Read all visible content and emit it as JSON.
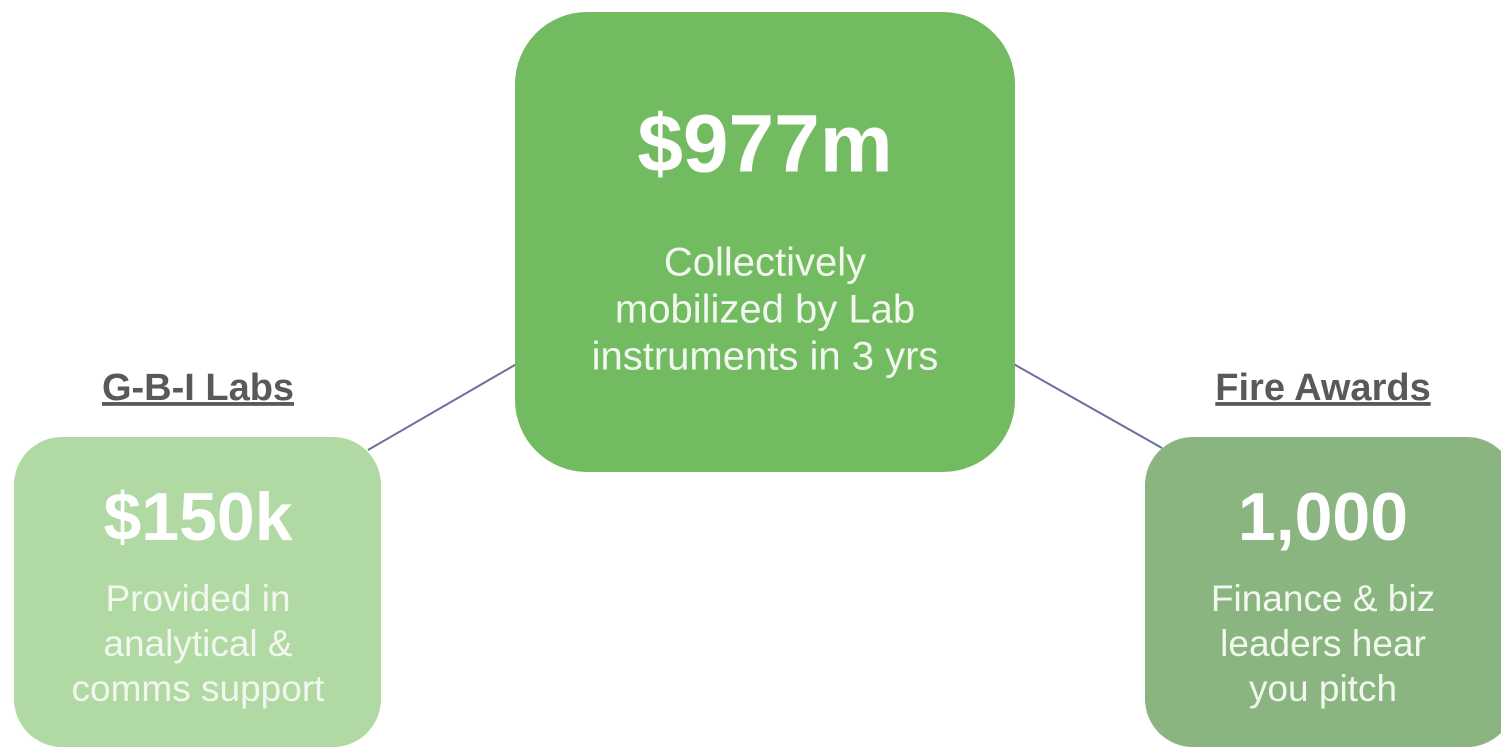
{
  "nodes": [
    {
      "label": null,
      "value": "$977m",
      "description": [
        "Collectively",
        "mobilized by Lab",
        "instruments in 3 yrs"
      ]
    },
    {
      "label": "G-B-I Labs",
      "value": "$150k",
      "description": [
        "Provided in",
        "analytical &",
        "comms support"
      ]
    },
    {
      "label": "Fire Awards",
      "value": "1,000",
      "description": [
        "Finance & biz",
        "leaders hear",
        "you pitch"
      ]
    }
  ]
}
